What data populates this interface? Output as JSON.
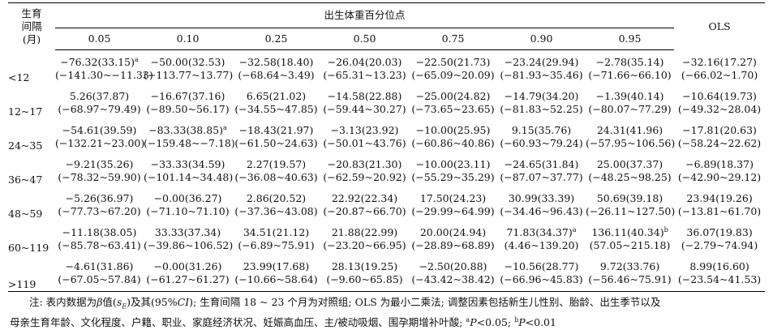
{
  "header": {
    "row_label_lines": [
      "生育",
      "间隔",
      "(月)"
    ],
    "group_title": "出生体重百分位点",
    "ols_label": "OLS",
    "percentiles": [
      "0.05",
      "0.10",
      "0.25",
      "0.50",
      "0.75",
      "0.90",
      "0.95"
    ]
  },
  "rows": [
    {
      "label": "<12",
      "est": [
        "−76.32(33.15)",
        "−50.00(32.53)",
        "−32.58(18.40)",
        "−26.04(20.03)",
        "−22.50(21.73)",
        "−23.24(29.94)",
        "−2.78(35.14)",
        "−32.16(17.27)"
      ],
      "sup": [
        "a",
        "",
        "",
        "",
        "",
        "",
        "",
        ""
      ],
      "ci": [
        "(−141.30~−11.33)",
        "(−113.77~13.77)",
        "(−68.64~3.49)",
        "(−65.31~13.23)",
        "(−65.09~20.09)",
        "(−81.93~35.46)",
        "(−71.66~66.10)",
        "(−66.02~1.70)"
      ]
    },
    {
      "label": "12~17",
      "est": [
        "5.26(37.87)",
        "−16.67(37.16)",
        "6.65(21.02)",
        "−14.58(22.88)",
        "−25.00(24.82)",
        "−14.79(34.20)",
        "−1.39(40.14)",
        "−10.64(19.73)"
      ],
      "sup": [
        "",
        "",
        "",
        "",
        "",
        "",
        "",
        ""
      ],
      "ci": [
        "(−68.97~79.49)",
        "(−89.50~56.17)",
        "(−34.55~47.85)",
        "(−59.44~30.27)",
        "(−73.65~23.65)",
        "(−81.83~52.25)",
        "(−80.07~77.29)",
        "(−49.32~28.04)"
      ]
    },
    {
      "label": "24~35",
      "est": [
        "−54.61(39.59)",
        "−83.33(38.85)",
        "−18.43(21.97)",
        "−3.13(23.92)",
        "−10.00(25.95)",
        "9.15(35.76)",
        "24.31(41.96)",
        "−17.81(20.63)"
      ],
      "sup": [
        "",
        "a",
        "",
        "",
        "",
        "",
        "",
        ""
      ],
      "ci": [
        "(−132.21~23.00)",
        "(−159.48~−7.18)",
        "(−61.50~24.63)",
        "(−50.01~43.76)",
        "(−60.86~40.86)",
        "(−60.93~79.24)",
        "(−57.95~106.56)",
        "(−58.24~22.62)"
      ]
    },
    {
      "label": "36~47",
      "est": [
        "−9.21(35.26)",
        "−33.33(34.59)",
        "2.27(19.57)",
        "−20.83(21.30)",
        "−10.00(23.11)",
        "−24.65(31.84)",
        "25.00(37.37)",
        "−6.89(18.37)"
      ],
      "sup": [
        "",
        "",
        "",
        "",
        "",
        "",
        "",
        ""
      ],
      "ci": [
        "(−78.32~59.90)",
        "(−101.14~34.48)",
        "(−36.08~40.63)",
        "(−62.59~20.92)",
        "(−55.29~35.29)",
        "(−87.07~37.77)",
        "(−48.25~98.25)",
        "(−42.90~29.12)"
      ]
    },
    {
      "label": "48~59",
      "est": [
        "−5.26(36.97)",
        "−0.00(36.27)",
        "2.86(20.52)",
        "22.92(22.34)",
        "17.50(24.23)",
        "30.99(33.39)",
        "50.69(39.18)",
        "23.94(19.26)"
      ],
      "sup": [
        "",
        "",
        "",
        "",
        "",
        "",
        "",
        ""
      ],
      "ci": [
        "(−77.73~67.20)",
        "(−71.10~71.10)",
        "(−37.36~43.08)",
        "(−20.87~66.70)",
        "(−29.99~64.99)",
        "(−34.46~96.43)",
        "(−26.11~127.50)",
        "(−13.81~61.70)"
      ]
    },
    {
      "label": "60~119",
      "est": [
        "−11.18(38.05)",
        "33.33(37.34)",
        "34.51(21.12)",
        "21.88(22.99)",
        "20.00(24.94)",
        "71.83(34.37)",
        "136.11(40.34)",
        "36.07(19.83)"
      ],
      "sup": [
        "",
        "",
        "",
        "",
        "",
        "a",
        "b",
        ""
      ],
      "ci": [
        "(−85.78~63.41)",
        "(−39.86~106.52)",
        "(−6.89~75.91)",
        "(−23.20~66.95)",
        "(−28.89~68.89)",
        "(4.46~139.20)",
        "(57.05~215.18)",
        "(−2.79~74.94)"
      ]
    },
    {
      "label": ">119",
      "est": [
        "−4.61(31.86)",
        "−0.00(31.26)",
        "23.99(17.68)",
        "28.13(19.25)",
        "−2.50(20.88)",
        "−10.56(28.77)",
        "9.72(33.76)",
        "8.99(16.60)"
      ],
      "sup": [
        "",
        "",
        "",
        "",
        "",
        "",
        "",
        ""
      ],
      "ci": [
        "(−67.05~57.84)",
        "(−61.27~61.27)",
        "(−10.66~58.64)",
        "(−9.60~65.85)",
        "(−43.42~38.42)",
        "(−66.96~45.83)",
        "(−56.46~75.91)",
        "(−23.54~41.53)"
      ]
    }
  ],
  "note": {
    "prefix": "注: 表内数据为",
    "beta": "β",
    "mid1": "值(",
    "se": "s",
    "se_sub": "E",
    "mid2": ")及其(95%",
    "ci": "CI",
    "rest1": "); 生育间隔 18 ~ 23 个月为对照组; OLS 为最小二乘法; 调整因素包括新生儿性别、胎龄、出生季节以及",
    "line2_a": "母亲生育年龄、文化程度、户籍、职业、家庭经济状况、妊娠高血压、主/被动吸烟、围孕期增补叶酸; ",
    "sup_a": "a",
    "p1": "P",
    "p1_rest": "<0.05; ",
    "sup_b": "b",
    "p2": "P",
    "p2_rest": "<0.01"
  }
}
